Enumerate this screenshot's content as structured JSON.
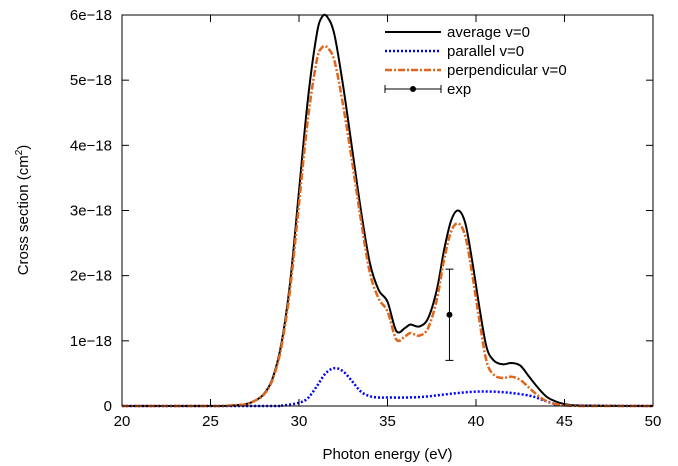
{
  "chart_data": {
    "type": "line",
    "xlabel": "Photon energy (eV)",
    "ylabel_main": "Cross section (cm",
    "ylabel_sup": "2",
    "ylabel_close": ")",
    "xlim": [
      20,
      50
    ],
    "ylim": [
      0,
      6e-18
    ],
    "xticks": [
      20,
      25,
      30,
      35,
      40,
      45,
      50
    ],
    "xtick_labels": [
      "20",
      "25",
      "30",
      "35",
      "40",
      "45",
      "50"
    ],
    "yticks": [
      0,
      1e-18,
      2e-18,
      3e-18,
      4e-18,
      5e-18,
      6e-18
    ],
    "ytick_labels": [
      "0",
      "1e−18",
      "2e−18",
      "3e−18",
      "4e−18",
      "5e−18",
      "6e−18"
    ],
    "grid": false,
    "legend_position": "top-right",
    "series": [
      {
        "name": "average v=0",
        "color": "#000000",
        "style": "solid",
        "x": [
          20,
          25,
          26,
          27,
          27.5,
          28,
          28.5,
          29,
          29.5,
          30,
          30.5,
          31,
          31.3,
          31.6,
          32,
          32.5,
          33,
          33.5,
          34,
          34.5,
          35,
          35.5,
          36,
          36.3,
          36.8,
          37.3,
          37.8,
          38.2,
          38.6,
          39,
          39.4,
          39.8,
          40.2,
          40.6,
          41,
          41.5,
          42,
          42.5,
          43,
          43.5,
          44,
          44.5,
          45,
          46,
          50
        ],
        "y": [
          0,
          0,
          5e-21,
          3e-20,
          8e-20,
          1.8e-19,
          4.2e-19,
          9.5e-19,
          1.9e-18,
          3.3e-18,
          4.7e-18,
          5.7e-18,
          5.97e-18,
          5.97e-18,
          5.7e-18,
          4.9e-18,
          3.95e-18,
          3e-18,
          2.2e-18,
          1.78e-18,
          1.6e-18,
          1.15e-18,
          1.2e-18,
          1.25e-18,
          1.22e-18,
          1.35e-18,
          1.8e-18,
          2.4e-18,
          2.85e-18,
          3e-18,
          2.8e-18,
          2.2e-18,
          1.5e-18,
          9e-19,
          7e-19,
          6.4e-19,
          6.6e-19,
          6.2e-19,
          4.5e-19,
          2.8e-19,
          1.4e-19,
          7e-20,
          3e-20,
          5e-21,
          0
        ]
      },
      {
        "name": "parallel v=0",
        "color": "#0000ff",
        "style": "dotted",
        "x": [
          20,
          28,
          29,
          30,
          30.5,
          31,
          31.5,
          32,
          32.5,
          33,
          33.5,
          34,
          34.5,
          35,
          36,
          37,
          38,
          39,
          40,
          41,
          42,
          43,
          43.5,
          44,
          44.5,
          45,
          50
        ],
        "y": [
          0,
          0,
          5e-21,
          5e-20,
          1.2e-19,
          3e-19,
          5e-19,
          5.8e-19,
          5.3e-19,
          3.8e-19,
          2.2e-19,
          1.5e-19,
          1.3e-19,
          1.3e-19,
          1.3e-19,
          1.4e-19,
          1.7e-19,
          2e-19,
          2.2e-19,
          2.2e-19,
          2e-19,
          1.6e-19,
          1.2e-19,
          7e-20,
          3e-20,
          1e-20,
          0
        ]
      },
      {
        "name": "perpendicular v=0",
        "color": "#e0661a",
        "style": "dash-dot",
        "x": [
          20,
          25,
          26,
          27,
          27.5,
          28,
          28.5,
          29,
          29.5,
          30,
          30.5,
          31,
          31.3,
          31.6,
          32,
          32.5,
          33,
          33.5,
          34,
          34.5,
          35,
          35.5,
          36,
          36.3,
          36.8,
          37.3,
          37.8,
          38.2,
          38.6,
          39,
          39.4,
          39.8,
          40.2,
          40.6,
          41,
          41.5,
          42,
          42.5,
          43,
          43.5,
          44,
          44.5,
          45,
          46,
          50
        ],
        "y": [
          0,
          0,
          5e-21,
          3e-20,
          8e-20,
          1.7e-19,
          4e-19,
          9e-19,
          1.8e-18,
          3.1e-18,
          4.4e-18,
          5.3e-18,
          5.5e-18,
          5.5e-18,
          5.3e-18,
          4.6e-18,
          3.75e-18,
          2.85e-18,
          2.05e-18,
          1.65e-18,
          1.45e-18,
          1.02e-18,
          1.07e-18,
          1.12e-18,
          1.08e-18,
          1.2e-18,
          1.65e-18,
          2.25e-18,
          2.68e-18,
          2.8e-18,
          2.6e-18,
          2e-18,
          1.3e-18,
          6.8e-19,
          4.8e-19,
          4.3e-19,
          4.5e-19,
          4e-19,
          2.8e-19,
          1.6e-19,
          7e-20,
          3e-20,
          1e-20,
          0,
          0
        ]
      }
    ],
    "exp": {
      "name": "exp",
      "color": "#000000",
      "x": 38.5,
      "y": 1.4e-18,
      "y_low": 7e-19,
      "y_high": 2.1e-18
    }
  }
}
